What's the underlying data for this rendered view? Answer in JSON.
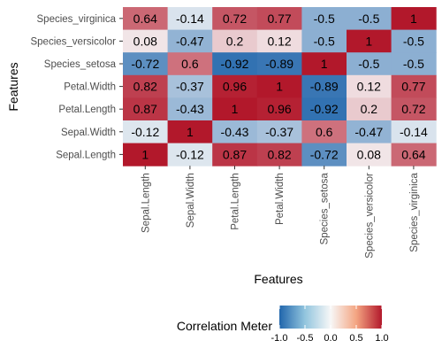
{
  "chart_data": {
    "type": "heatmap",
    "xlabel": "Features",
    "ylabel": "Features",
    "x_categories": [
      "Sepal.Length",
      "Sepal.Width",
      "Petal.Length",
      "Petal.Width",
      "Species_setosa",
      "Species_versicolor",
      "Species_virginica"
    ],
    "y_categories_top_to_bottom": [
      "Species_virginica",
      "Species_versicolor",
      "Species_setosa",
      "Petal.Width",
      "Petal.Length",
      "Sepal.Width",
      "Sepal.Length"
    ],
    "values": [
      [
        0.64,
        -0.14,
        0.72,
        0.77,
        -0.5,
        -0.5,
        1
      ],
      [
        0.08,
        -0.47,
        0.2,
        0.12,
        -0.5,
        1,
        -0.5
      ],
      [
        -0.72,
        0.6,
        -0.92,
        -0.89,
        1,
        -0.5,
        -0.5
      ],
      [
        0.82,
        -0.37,
        0.96,
        1,
        -0.89,
        0.12,
        0.77
      ],
      [
        0.87,
        -0.43,
        1,
        0.96,
        -0.92,
        0.2,
        0.72
      ],
      [
        -0.12,
        1,
        -0.43,
        -0.37,
        0.6,
        -0.47,
        -0.14
      ],
      [
        1,
        -0.12,
        0.87,
        0.82,
        -0.72,
        0.08,
        0.64
      ]
    ],
    "value_range": [
      -1,
      1
    ],
    "colors": {
      "low": "#2166ac",
      "mid": "#f7f7f7",
      "high": "#b2182b"
    },
    "legend": {
      "title": "Correlation Meter",
      "position": "bottom",
      "ticks": [
        "-1.0",
        "-0.5",
        "0.0",
        "0.5",
        "1.0"
      ]
    },
    "grid": false
  }
}
